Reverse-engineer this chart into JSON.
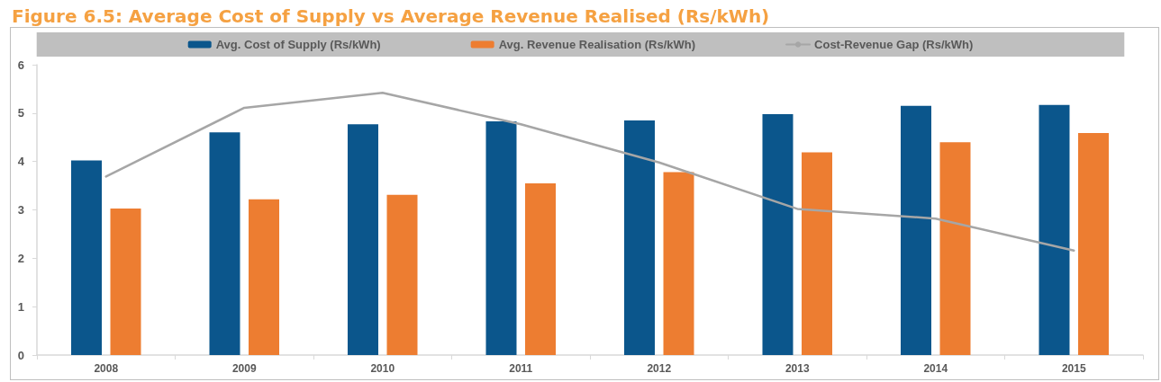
{
  "chart_data": {
    "type": "bar",
    "title": "Figure 6.5: Average Cost of Supply vs Average Revenue Realised (Rs/kWh)",
    "categories": [
      "2008",
      "2009",
      "2010",
      "2011",
      "2012",
      "2013",
      "2014",
      "2015"
    ],
    "series": [
      {
        "name": "Avg. Cost of Supply (Rs/kWh)",
        "color": "#0b568c",
        "values": [
          4.02,
          4.6,
          4.77,
          4.83,
          4.85,
          4.98,
          5.15,
          5.17
        ]
      },
      {
        "name": "Avg. Revenue Realisation (Rs/kWh)",
        "color": "#ed7d31",
        "values": [
          3.03,
          3.22,
          3.31,
          3.55,
          3.78,
          4.19,
          4.4,
          4.59
        ]
      },
      {
        "name": "Cost-Revenue Gap (Rs/kWh)",
        "type": "line",
        "color": "#a6a6a6",
        "values": [
          3.69,
          5.11,
          5.42,
          4.77,
          3.98,
          3.02,
          2.82,
          2.16
        ]
      }
    ],
    "ylim": [
      0,
      6
    ],
    "yticks": [
      0,
      1,
      2,
      3,
      4,
      5,
      6
    ],
    "grid": false,
    "legend": "top",
    "marker": "none"
  }
}
